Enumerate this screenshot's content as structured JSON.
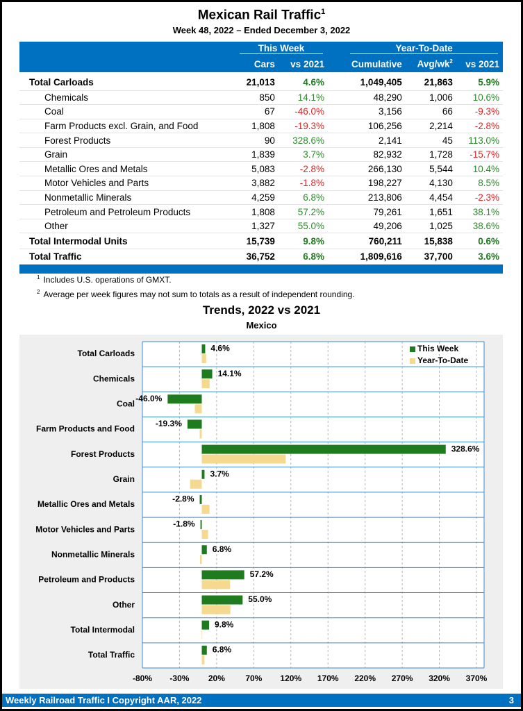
{
  "header": {
    "title": "Mexican Rail Traffic",
    "title_note": "1",
    "subtitle": "Week 48, 2022 – Ended December 3, 2022"
  },
  "table": {
    "groups": [
      "This Week",
      "Year-To-Date"
    ],
    "columns": [
      "Cars",
      "vs 2021",
      "Cumulative",
      "Avg/wk",
      "vs 2021"
    ],
    "avg_note": "2",
    "rows": [
      [
        "Total Carloads",
        "21,013",
        "4.6%",
        "1,049,405",
        "21,863",
        "5.9%"
      ],
      [
        "Chemicals",
        "850",
        "14.1%",
        "48,290",
        "1,006",
        "10.6%"
      ],
      [
        "Coal",
        "67",
        "-46.0%",
        "3,156",
        "66",
        "-9.3%"
      ],
      [
        "Farm Products excl. Grain, and Food",
        "1,808",
        "-19.3%",
        "106,256",
        "2,214",
        "-2.8%"
      ],
      [
        "Forest Products",
        "90",
        "328.6%",
        "2,141",
        "45",
        "113.0%"
      ],
      [
        "Grain",
        "1,839",
        "3.7%",
        "82,932",
        "1,728",
        "-15.7%"
      ],
      [
        "Metallic Ores and Metals",
        "5,083",
        "-2.8%",
        "266,130",
        "5,544",
        "10.4%"
      ],
      [
        "Motor Vehicles and Parts",
        "3,882",
        "-1.8%",
        "198,227",
        "4,130",
        "8.5%"
      ],
      [
        "Nonmetallic Minerals",
        "4,259",
        "6.8%",
        "213,806",
        "4,454",
        "-2.3%"
      ],
      [
        "Petroleum and Petroleum Products",
        "1,808",
        "57.2%",
        "79,261",
        "1,651",
        "38.1%"
      ],
      [
        "Other",
        "1,327",
        "55.0%",
        "49,206",
        "1,025",
        "38.6%"
      ],
      [
        "Total Intermodal Units",
        "15,739",
        "9.8%",
        "760,211",
        "15,838",
        "0.6%"
      ],
      [
        "Total Traffic",
        "36,752",
        "6.8%",
        "1,809,616",
        "37,700",
        "3.6%"
      ]
    ]
  },
  "footnotes": [
    {
      "mark": "1",
      "text": "Includes U.S. operations of GMXT."
    },
    {
      "mark": "2",
      "text": "Average per week figures may not sum to totals as a result of independent rounding."
    }
  ],
  "chart_data": {
    "type": "bar",
    "orientation": "horizontal",
    "title": "Trends, 2022 vs 2021",
    "subtitle": "Mexico",
    "categories": [
      "Total Carloads",
      "Chemicals",
      "Coal",
      "Farm Products and Food",
      "Forest Products",
      "Grain",
      "Metallic Ores and Metals",
      "Motor Vehicles and Parts",
      "Nonmetallic Minerals",
      "Petroleum and Products",
      "Other",
      "Total Intermodal",
      "Total Traffic"
    ],
    "series": [
      {
        "name": "This Week",
        "color": "#1e7b1e",
        "values": [
          4.6,
          14.1,
          -46.0,
          -19.3,
          328.6,
          3.7,
          -2.8,
          -1.8,
          6.8,
          57.2,
          55.0,
          9.8,
          6.8
        ],
        "value_labels": [
          "4.6%",
          "14.1%",
          "-46.0%",
          "-19.3%",
          "328.6%",
          "3.7%",
          "-2.8%",
          "-1.8%",
          "6.8%",
          "57.2%",
          "55.0%",
          "9.8%",
          "6.8%"
        ]
      },
      {
        "name": "Year-To-Date",
        "color": "#f5d98f",
        "values": [
          5.9,
          10.6,
          -9.3,
          -2.8,
          113.0,
          -15.7,
          10.4,
          8.5,
          -2.3,
          38.1,
          38.6,
          0.6,
          3.6
        ]
      }
    ],
    "xlim": [
      -80,
      370
    ],
    "xticks": [
      {
        "value": -80,
        "label": "-80%"
      },
      {
        "value": -30,
        "label": "-30%"
      },
      {
        "value": 20,
        "label": "20%"
      },
      {
        "value": 70,
        "label": "70%"
      },
      {
        "value": 120,
        "label": "120%"
      },
      {
        "value": 170,
        "label": "170%"
      },
      {
        "value": 220,
        "label": "220%"
      },
      {
        "value": 270,
        "label": "270%"
      },
      {
        "value": 320,
        "label": "320%"
      },
      {
        "value": 370,
        "label": "370%"
      }
    ],
    "grid": true,
    "legend": "upper right"
  },
  "footer": {
    "text": "Weekly Railroad Traffic I Copyright AAR, 2022",
    "page": "3"
  }
}
